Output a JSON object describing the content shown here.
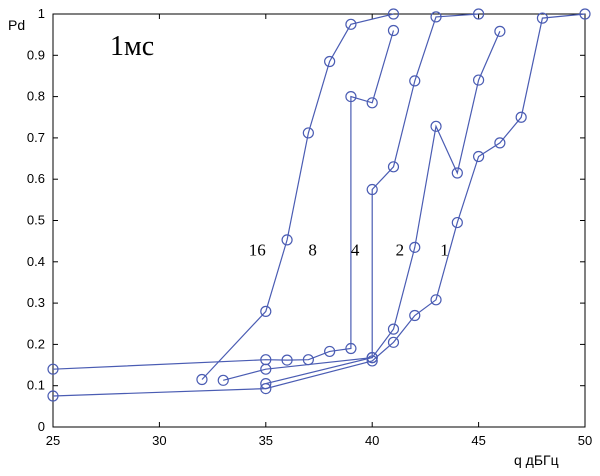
{
  "chart_data": {
    "type": "line",
    "xlabel": "q дБГц",
    "ylabel": "Pd",
    "xlim": [
      25,
      50
    ],
    "ylim": [
      0,
      1
    ],
    "xticks": [
      "25",
      "30",
      "35",
      "40",
      "45",
      "50"
    ],
    "yticks": [
      "0",
      "0.1",
      "0.2",
      "0.3",
      "0.4",
      "0.5",
      "0.6",
      "0.7",
      "0.8",
      "0.9",
      "1"
    ],
    "grid": false,
    "annotation": "1мс",
    "line_color": "#4a5cb3",
    "series": [
      {
        "name": "1",
        "label_at": [
          43.4,
          0.415
        ],
        "points": [
          [
            25,
            0.075
          ],
          [
            35,
            0.093
          ],
          [
            40,
            0.16
          ],
          [
            41,
            0.205
          ],
          [
            42,
            0.27
          ],
          [
            43,
            0.308
          ],
          [
            44,
            0.495
          ],
          [
            45,
            0.655
          ],
          [
            46,
            0.688
          ],
          [
            47,
            0.75
          ],
          [
            48,
            0.99
          ],
          [
            50,
            1.0
          ]
        ]
      },
      {
        "name": "2",
        "label_at": [
          41.3,
          0.415
        ],
        "points": [
          [
            35,
            0.105
          ],
          [
            40,
            0.168
          ],
          [
            41,
            0.237
          ],
          [
            42,
            0.435
          ],
          [
            43,
            0.728
          ],
          [
            44,
            0.615
          ],
          [
            45,
            0.84
          ],
          [
            46,
            0.958
          ]
        ]
      },
      {
        "name": "4",
        "label_at": [
          39.2,
          0.415
        ],
        "points": [
          [
            33,
            0.113
          ],
          [
            35,
            0.14
          ],
          [
            40,
            0.168
          ],
          [
            40,
            0.575
          ],
          [
            41,
            0.63
          ],
          [
            42,
            0.838
          ],
          [
            43,
            0.993
          ],
          [
            45,
            1.0
          ]
        ]
      },
      {
        "name": "8",
        "label_at": [
          37.2,
          0.415
        ],
        "points": [
          [
            25,
            0.14
          ],
          [
            35,
            0.163
          ],
          [
            36,
            0.162
          ],
          [
            37,
            0.163
          ],
          [
            38,
            0.183
          ],
          [
            39,
            0.19
          ],
          [
            39,
            0.8
          ],
          [
            40,
            0.785
          ],
          [
            41,
            0.96
          ]
        ]
      },
      {
        "name": "16",
        "label_at": [
          34.6,
          0.415
        ],
        "points": [
          [
            32,
            0.115
          ],
          [
            35,
            0.28
          ],
          [
            36,
            0.453
          ],
          [
            37,
            0.712
          ],
          [
            38,
            0.885
          ],
          [
            39,
            0.975
          ],
          [
            41,
            1.0
          ]
        ]
      }
    ]
  }
}
